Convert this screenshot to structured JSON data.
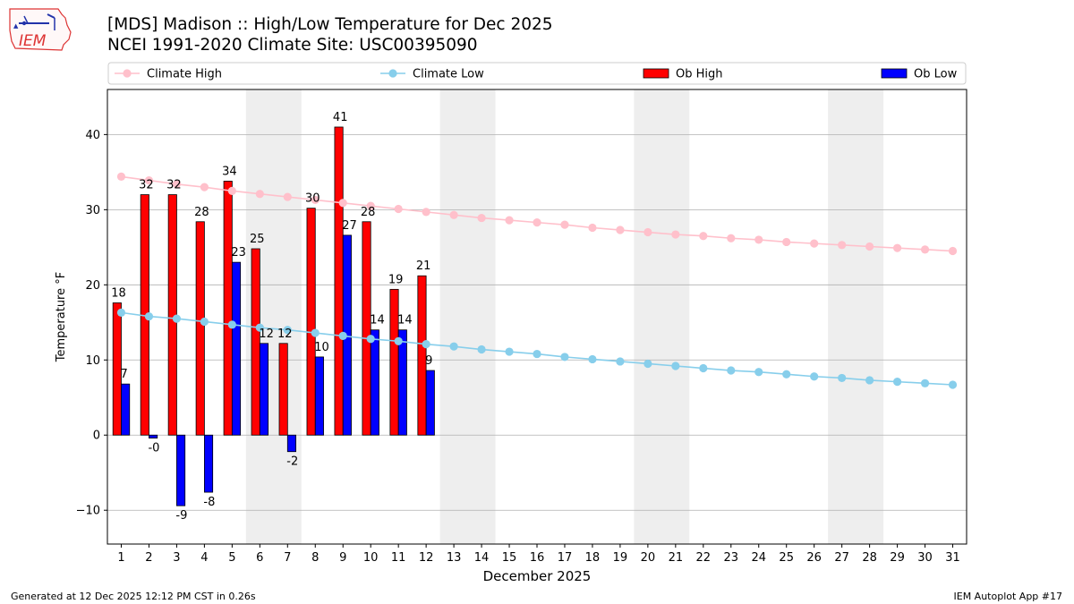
{
  "logo": {
    "text": "IEM"
  },
  "title": {
    "line1": "[MDS] Madison :: High/Low Temperature for Dec 2025",
    "line2": "NCEI 1991-2020 Climate Site: USC00395090"
  },
  "footer": {
    "generated": "Generated at 12 Dec 2025 12:12 PM CST in 0.26s",
    "app": "IEM Autoplot App #17"
  },
  "colors": {
    "ob_high": "#ff0000",
    "ob_low": "#0000ff",
    "climate_high": "#ffc0cb",
    "climate_low": "#87ceeb",
    "weekend_band": "#eeeeee",
    "grid": "#b0b0b0"
  },
  "chart_data": {
    "type": "bar",
    "xlabel": "December 2025",
    "ylabel": "Temperature °F",
    "xlim": [
      0.5,
      31.5
    ],
    "ylim": [
      -14.5,
      46
    ],
    "yticks": [
      -10,
      0,
      10,
      20,
      30,
      40
    ],
    "grid": "horizontal",
    "legend_position": "top",
    "days": [
      1,
      2,
      3,
      4,
      5,
      6,
      7,
      8,
      9,
      10,
      11,
      12,
      13,
      14,
      15,
      16,
      17,
      18,
      19,
      20,
      21,
      22,
      23,
      24,
      25,
      26,
      27,
      28,
      29,
      30,
      31
    ],
    "weekend_bands": [
      [
        5.5,
        7.5
      ],
      [
        12.5,
        14.5
      ],
      [
        19.5,
        21.5
      ],
      [
        26.5,
        28.5
      ]
    ],
    "legend": [
      "Climate High",
      "Climate Low",
      "Ob High",
      "Ob Low"
    ],
    "series": [
      {
        "name": "Ob High",
        "type": "bar",
        "x": [
          1,
          2,
          3,
          4,
          5,
          6,
          7,
          8,
          9,
          10,
          11,
          12
        ],
        "values": [
          17.6,
          32.0,
          32.0,
          28.4,
          33.8,
          24.8,
          12.2,
          30.2,
          41.0,
          28.4,
          19.4,
          21.2
        ],
        "labels": [
          "18",
          "32",
          "32",
          "28",
          "34",
          "25",
          "12",
          "30",
          "41",
          "28",
          "19",
          "21"
        ]
      },
      {
        "name": "Ob Low",
        "type": "bar",
        "x": [
          1,
          2,
          3,
          4,
          5,
          6,
          7,
          8,
          9,
          10,
          11,
          12
        ],
        "values": [
          6.8,
          -0.4,
          -9.4,
          -7.6,
          23.0,
          12.2,
          -2.2,
          10.4,
          26.6,
          14.0,
          14.0,
          8.6
        ],
        "labels": [
          "7",
          "-0",
          "-9",
          "-8",
          "23",
          "12",
          "-2",
          "10",
          "27",
          "14",
          "14",
          "9"
        ]
      },
      {
        "name": "Climate High",
        "type": "line",
        "x": [
          1,
          2,
          3,
          4,
          5,
          6,
          7,
          8,
          9,
          10,
          11,
          12,
          13,
          14,
          15,
          16,
          17,
          18,
          19,
          20,
          21,
          22,
          23,
          24,
          25,
          26,
          27,
          28,
          29,
          30,
          31
        ],
        "values": [
          34.4,
          33.9,
          33.4,
          33.0,
          32.5,
          32.1,
          31.7,
          31.3,
          30.9,
          30.5,
          30.1,
          29.7,
          29.3,
          28.9,
          28.6,
          28.3,
          28.0,
          27.6,
          27.3,
          27.0,
          26.7,
          26.5,
          26.2,
          26.0,
          25.7,
          25.5,
          25.3,
          25.1,
          24.9,
          24.7,
          24.5
        ]
      },
      {
        "name": "Climate Low",
        "type": "line",
        "x": [
          1,
          2,
          3,
          4,
          5,
          6,
          7,
          8,
          9,
          10,
          11,
          12,
          13,
          14,
          15,
          16,
          17,
          18,
          19,
          20,
          21,
          22,
          23,
          24,
          25,
          26,
          27,
          28,
          29,
          30,
          31
        ],
        "values": [
          16.3,
          15.8,
          15.5,
          15.1,
          14.7,
          14.3,
          14.0,
          13.6,
          13.2,
          12.8,
          12.5,
          12.1,
          11.8,
          11.4,
          11.1,
          10.8,
          10.4,
          10.1,
          9.8,
          9.5,
          9.2,
          8.9,
          8.6,
          8.4,
          8.1,
          7.8,
          7.6,
          7.3,
          7.1,
          6.9,
          6.7
        ]
      }
    ]
  }
}
